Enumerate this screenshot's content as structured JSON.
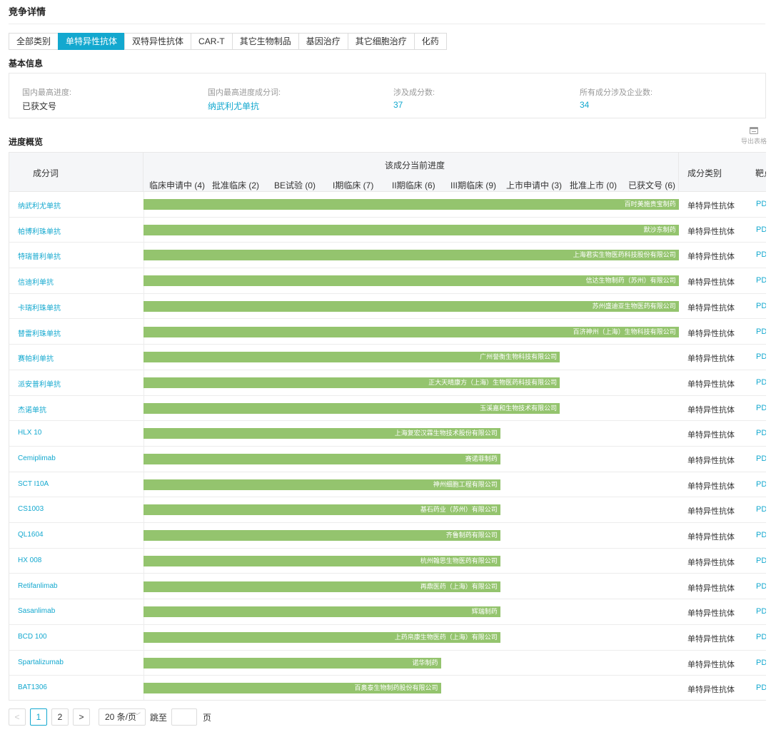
{
  "page_title": "竞争详情",
  "tabs": [
    {
      "label": "全部类别",
      "active": false
    },
    {
      "label": "单特异性抗体",
      "active": true
    },
    {
      "label": "双特异性抗体",
      "active": false
    },
    {
      "label": "CAR-T",
      "active": false
    },
    {
      "label": "其它生物制品",
      "active": false
    },
    {
      "label": "基因治疗",
      "active": false
    },
    {
      "label": "其它细胞治疗",
      "active": false
    },
    {
      "label": "化药",
      "active": false
    }
  ],
  "basic_info": {
    "title": "基本信息",
    "items": [
      {
        "label": "国内最高进度:",
        "value": "已获文号"
      },
      {
        "label": "国内最高进度成分词:",
        "value": "纳武利尤单抗"
      },
      {
        "label": "涉及成分数:",
        "value": "37"
      },
      {
        "label": "所有成分涉及企业数:",
        "value": "34"
      }
    ]
  },
  "overview": {
    "title": "进度概览",
    "export_label": "导出表格",
    "col_name": "成分词",
    "col_progress": "该成分当前进度",
    "col_type": "成分类别",
    "col_target": "靶点",
    "stages": [
      "临床申请中 (4)",
      "批准临床 (2)",
      "BE试验 (0)",
      "I期临床 (7)",
      "II期临床 (6)",
      "III期临床 (9)",
      "上市申请中 (3)",
      "批准上市 (0)",
      "已获文号 (6)"
    ],
    "rows": [
      {
        "name": "纳武利尤单抗",
        "stage_reached": 9,
        "company": "百时美施贵宝制药",
        "type": "单特异性抗体",
        "target": "PD"
      },
      {
        "name": "帕博利珠单抗",
        "stage_reached": 9,
        "company": "默沙东制药",
        "type": "单特异性抗体",
        "target": "PD"
      },
      {
        "name": "特瑞普利单抗",
        "stage_reached": 9,
        "company": "上海君实生物医药科技股份有限公司",
        "type": "单特异性抗体",
        "target": "PD"
      },
      {
        "name": "信迪利单抗",
        "stage_reached": 9,
        "company": "信达生物制药（苏州）有限公司",
        "type": "单特异性抗体",
        "target": "PD"
      },
      {
        "name": "卡瑞利珠单抗",
        "stage_reached": 9,
        "company": "苏州盛迪亚生物医药有限公司",
        "type": "单特异性抗体",
        "target": "PD"
      },
      {
        "name": "替雷利珠单抗",
        "stage_reached": 9,
        "company": "百济神州（上海）生物科技有限公司",
        "type": "单特异性抗体",
        "target": "PD"
      },
      {
        "name": "赛帕利单抗",
        "stage_reached": 7,
        "company": "广州誉衡生物科技有限公司",
        "type": "单特异性抗体",
        "target": "PD"
      },
      {
        "name": "派安普利单抗",
        "stage_reached": 7,
        "company": "正大天晴康方（上海）生物医药科技有限公司",
        "type": "单特异性抗体",
        "target": "PD"
      },
      {
        "name": "杰诺单抗",
        "stage_reached": 7,
        "company": "玉溪嘉和生物技术有限公司",
        "type": "单特异性抗体",
        "target": "PD"
      },
      {
        "name": "HLX 10",
        "stage_reached": 6,
        "company": "上海复宏汉霖生物技术股份有限公司",
        "type": "单特异性抗体",
        "target": "PD"
      },
      {
        "name": "Cemiplimab",
        "stage_reached": 6,
        "company": "赛诺菲制药",
        "type": "单特异性抗体",
        "target": "PD"
      },
      {
        "name": "SCT I10A",
        "stage_reached": 6,
        "company": "神州细胞工程有限公司",
        "type": "单特异性抗体",
        "target": "PD"
      },
      {
        "name": "CS1003",
        "stage_reached": 6,
        "company": "基石药业（苏州）有限公司",
        "type": "单特异性抗体",
        "target": "PD"
      },
      {
        "name": "QL1604",
        "stage_reached": 6,
        "company": "齐鲁制药有限公司",
        "type": "单特异性抗体",
        "target": "PD"
      },
      {
        "name": "HX 008",
        "stage_reached": 6,
        "company": "杭州翰思生物医药有限公司",
        "type": "单特异性抗体",
        "target": "PD"
      },
      {
        "name": "Retifanlimab",
        "stage_reached": 6,
        "company": "再鼎医药（上海）有限公司",
        "type": "单特异性抗体",
        "target": "PD"
      },
      {
        "name": "Sasanlimab",
        "stage_reached": 6,
        "company": "辉瑞制药",
        "type": "单特异性抗体",
        "target": "PD"
      },
      {
        "name": "BCD 100",
        "stage_reached": 6,
        "company": "上药帛康生物医药（上海）有限公司",
        "type": "单特异性抗体",
        "target": "PD"
      },
      {
        "name": "Spartalizumab",
        "stage_reached": 5,
        "company": "诺华制药",
        "type": "单特异性抗体",
        "target": "PD"
      },
      {
        "name": "BAT1306",
        "stage_reached": 5,
        "company": "百奥泰生物制药股份有限公司",
        "type": "单特异性抗体",
        "target": "PD"
      }
    ]
  },
  "pagination": {
    "prev": "<",
    "pages": [
      "1",
      "2"
    ],
    "current": "1",
    "next": ">",
    "page_size": "20 条/页",
    "jump_label": "跳至",
    "page_suffix": "页"
  },
  "colors": {
    "accent": "#13a8cf",
    "bar": "#94c46e"
  }
}
